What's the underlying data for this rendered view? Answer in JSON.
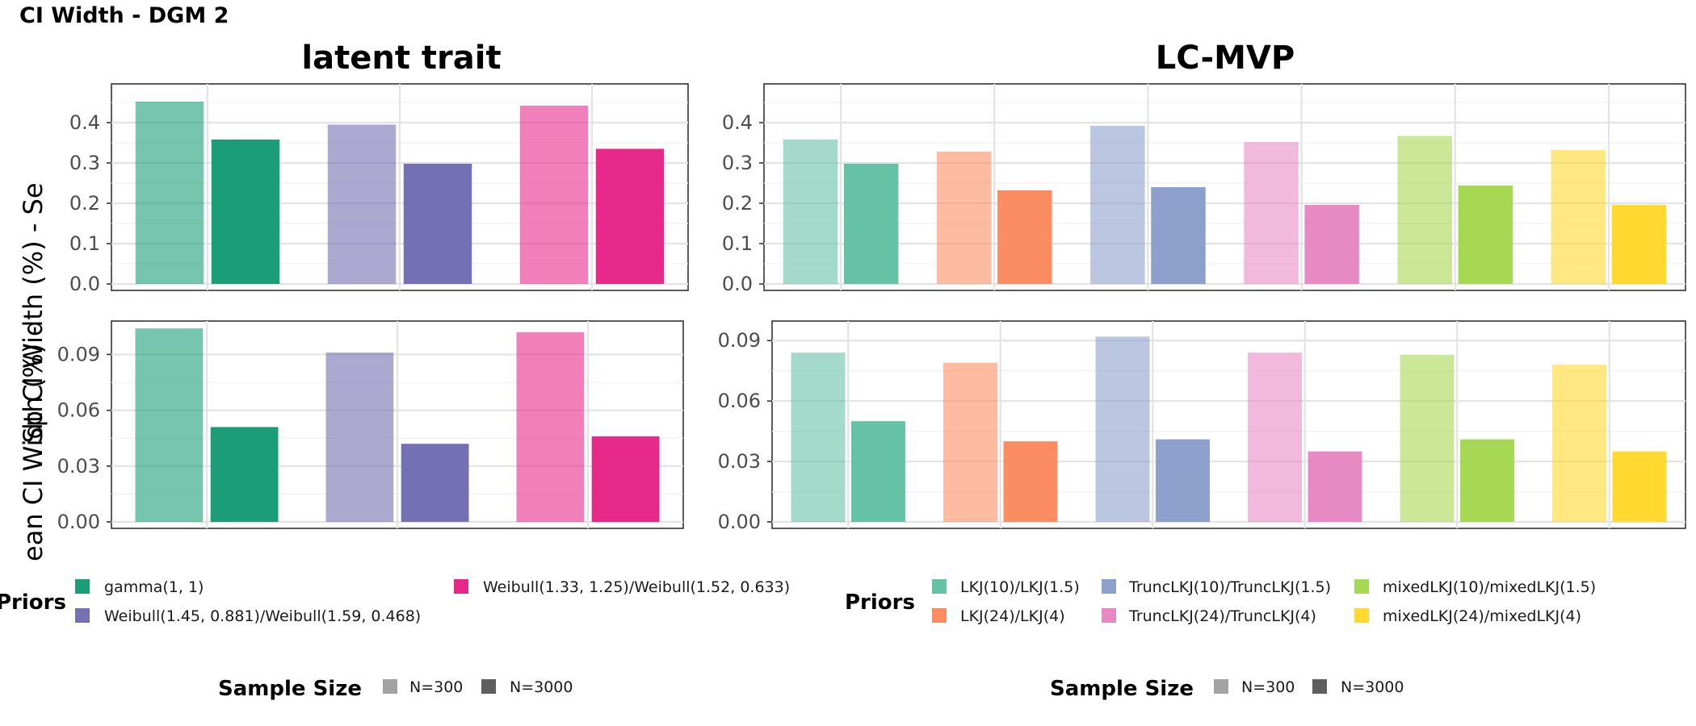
{
  "figure": {
    "title": "CI Width - DGM 2",
    "ylabel_top": "Sp CI Width (%) - Se",
    "ylabel_bottom": "ean CI Width (%) -"
  },
  "chart_data": [
    {
      "type": "bar",
      "id": "lt-se",
      "title": "latent trait",
      "ylim": [
        0,
        0.48
      ],
      "yticks": [
        0.0,
        0.1,
        0.2,
        0.3,
        0.4
      ],
      "ytick_labels": [
        "0.0",
        "0.1",
        "0.2",
        "0.3",
        "0.4"
      ],
      "categories": [
        "gamma(1, 1)",
        "Weibull(1.45, 0.881)/Weibull(1.59, 0.468)",
        "Weibull(1.33, 1.25)/Weibull(1.52, 0.633)"
      ],
      "series": [
        {
          "name": "N=300",
          "values": [
            0.452,
            0.395,
            0.442
          ]
        },
        {
          "name": "N=3000",
          "values": [
            0.358,
            0.298,
            0.335
          ]
        }
      ]
    },
    {
      "type": "bar",
      "id": "lc-se",
      "title": "LC-MVP",
      "ylim": [
        0,
        0.48
      ],
      "yticks": [
        0.0,
        0.1,
        0.2,
        0.3,
        0.4
      ],
      "ytick_labels": [
        "0.0",
        "0.1",
        "0.2",
        "0.3",
        "0.4"
      ],
      "categories": [
        "LKJ(10)/LKJ(1.5)",
        "LKJ(24)/LKJ(4)",
        "TruncLKJ(10)/TruncLKJ(1.5)",
        "TruncLKJ(24)/TruncLKJ(4)",
        "mixedLKJ(10)/mixedLKJ(1.5)",
        "mixedLKJ(24)/mixedLKJ(4)"
      ],
      "series": [
        {
          "name": "N=300",
          "values": [
            0.358,
            0.328,
            0.392,
            0.352,
            0.367,
            0.332
          ]
        },
        {
          "name": "N=3000",
          "values": [
            0.298,
            0.232,
            0.24,
            0.196,
            0.244,
            0.196
          ]
        }
      ]
    },
    {
      "type": "bar",
      "id": "lt-sp",
      "title": "",
      "ylim": [
        0,
        0.1045
      ],
      "yticks": [
        0.0,
        0.03,
        0.06,
        0.09
      ],
      "ytick_labels": [
        "0.00",
        "0.03",
        "0.06",
        "0.09"
      ],
      "categories": [
        "gamma(1, 1)",
        "Weibull(1.45, 0.881)/Weibull(1.59, 0.468)",
        "Weibull(1.33, 1.25)/Weibull(1.52, 0.633)"
      ],
      "series": [
        {
          "name": "N=300",
          "values": [
            0.104,
            0.091,
            0.102
          ]
        },
        {
          "name": "N=3000",
          "values": [
            0.051,
            0.042,
            0.046
          ]
        }
      ]
    },
    {
      "type": "bar",
      "id": "lc-sp",
      "title": "",
      "ylim": [
        0,
        0.0965
      ],
      "yticks": [
        0.0,
        0.03,
        0.06,
        0.09
      ],
      "ytick_labels": [
        "0.00",
        "0.03",
        "0.06",
        "0.09"
      ],
      "categories": [
        "LKJ(10)/LKJ(1.5)",
        "LKJ(24)/LKJ(4)",
        "TruncLKJ(10)/TruncLKJ(1.5)",
        "TruncLKJ(24)/TruncLKJ(4)",
        "mixedLKJ(10)/mixedLKJ(1.5)",
        "mixedLKJ(24)/mixedLKJ(4)"
      ],
      "series": [
        {
          "name": "N=300",
          "values": [
            0.084,
            0.079,
            0.092,
            0.084,
            0.083,
            0.078
          ]
        },
        {
          "name": "N=3000",
          "values": [
            0.05,
            0.04,
            0.041,
            0.035,
            0.041,
            0.035
          ]
        }
      ]
    }
  ],
  "legends": {
    "lt": {
      "priors_title": "Priors",
      "items": [
        {
          "label": "gamma(1, 1)",
          "color": "#1b9e77"
        },
        {
          "label": "Weibull(1.45, 0.881)/Weibull(1.59, 0.468)",
          "color": "#7570b3"
        },
        {
          "label": "Weibull(1.33, 1.25)/Weibull(1.52, 0.633)",
          "color": "#e7298a"
        }
      ],
      "size_title": "Sample Size",
      "sizes": [
        {
          "label": "N=300",
          "color": "#a3a3a3"
        },
        {
          "label": "N=3000",
          "color": "#5e5e5e"
        }
      ]
    },
    "lc": {
      "priors_title": "Priors",
      "items": [
        {
          "label": "LKJ(10)/LKJ(1.5)",
          "color": "#66c2a5"
        },
        {
          "label": "LKJ(24)/LKJ(4)",
          "color": "#fc8d62"
        },
        {
          "label": "TruncLKJ(10)/TruncLKJ(1.5)",
          "color": "#8da0cb"
        },
        {
          "label": "TruncLKJ(24)/TruncLKJ(4)",
          "color": "#e78ac3"
        },
        {
          "label": "mixedLKJ(10)/mixedLKJ(1.5)",
          "color": "#a6d854"
        },
        {
          "label": "mixedLKJ(24)/mixedLKJ(4)",
          "color": "#ffd92f"
        }
      ],
      "size_title": "Sample Size",
      "sizes": [
        {
          "label": "N=300",
          "color": "#a3a3a3"
        },
        {
          "label": "N=3000",
          "color": "#5e5e5e"
        }
      ]
    }
  }
}
